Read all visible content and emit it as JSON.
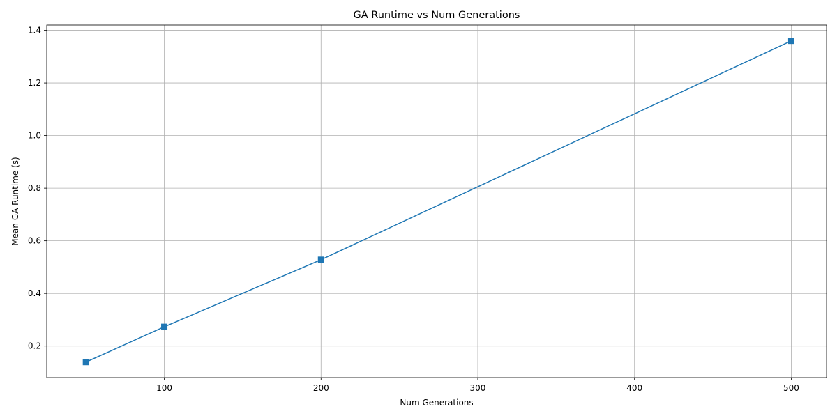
{
  "chart_data": {
    "type": "line",
    "title": "GA Runtime vs Num Generations",
    "xlabel": "Num Generations",
    "ylabel": "Mean GA Runtime (s)",
    "xlim": [
      25,
      522.5
    ],
    "ylim": [
      0.08,
      1.42
    ],
    "xticks": [
      100,
      200,
      300,
      400,
      500
    ],
    "xtick_labels": [
      "100",
      "200",
      "300",
      "400",
      "500"
    ],
    "yticks": [
      0.2,
      0.4,
      0.6,
      0.8,
      1.0,
      1.2,
      1.4
    ],
    "ytick_labels": [
      "0.2",
      "0.4",
      "0.6",
      "0.8",
      "1.0",
      "1.2",
      "1.4"
    ],
    "grid": true,
    "series": [
      {
        "name": "Mean GA Runtime",
        "color": "#1f77b4",
        "marker": "square",
        "x": [
          50,
          100,
          200,
          500
        ],
        "y": [
          0.139,
          0.273,
          0.528,
          1.36
        ]
      }
    ]
  }
}
